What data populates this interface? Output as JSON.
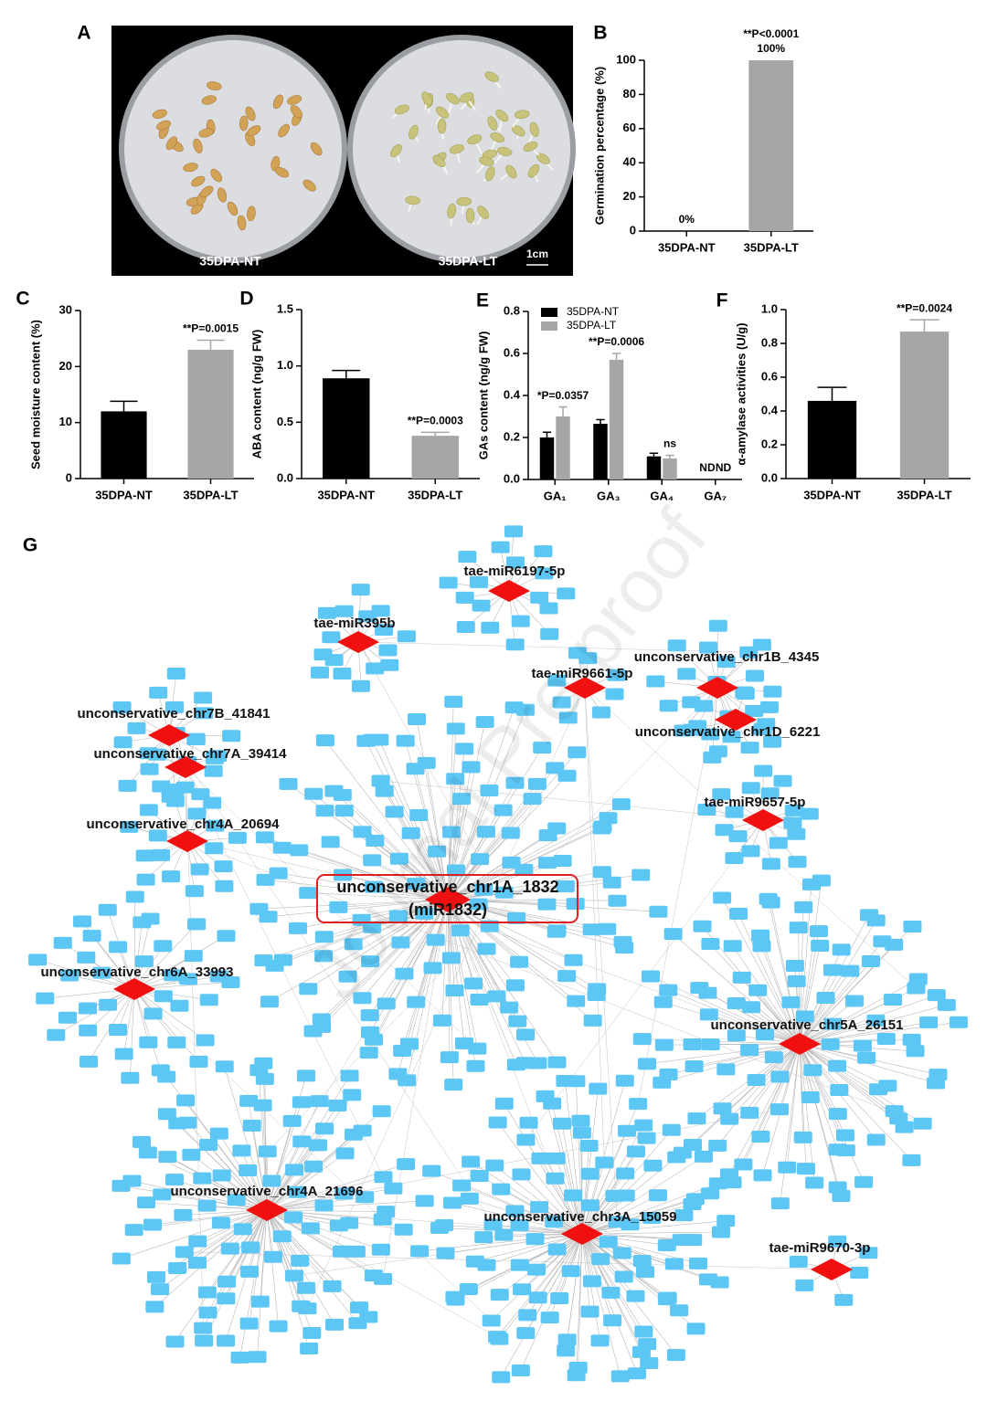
{
  "panel_labels": [
    "A",
    "B",
    "C",
    "D",
    "E",
    "F",
    "G"
  ],
  "photo": {
    "labels": [
      "35DPA-NT",
      "35DPA-LT"
    ],
    "scale_bar": "1cm"
  },
  "watermark": "Journal Pre-proof",
  "chart_data": [
    {
      "type": "bar",
      "ylabel": "Germination percentage (%)",
      "categories": [
        "35DPA-NT",
        "35DPA-LT"
      ],
      "values": [
        0,
        100
      ],
      "value_labels": [
        "0%",
        "100%"
      ],
      "colors": [
        "#000000",
        "#a6a6a8"
      ],
      "ylim": [
        0,
        100
      ],
      "yticks": [
        0,
        20,
        40,
        60,
        80,
        100
      ],
      "annotations": [
        {
          "text": "**P<0.0001",
          "category": "35DPA-LT"
        }
      ]
    },
    {
      "type": "bar",
      "ylabel": "Seed moisture content (%)",
      "categories": [
        "35DPA-NT",
        "35DPA-LT"
      ],
      "values": [
        12,
        23
      ],
      "errors": [
        1.8,
        1.7
      ],
      "colors": [
        "#000000",
        "#a6a6a8"
      ],
      "ylim": [
        0,
        30
      ],
      "yticks": [
        0,
        10,
        20,
        30
      ],
      "annotations": [
        {
          "text": "**P=0.0015",
          "category": "35DPA-LT"
        }
      ]
    },
    {
      "type": "bar",
      "ylabel": "ABA content (ng/g FW)",
      "categories": [
        "35DPA-NT",
        "35DPA-LT"
      ],
      "values": [
        0.89,
        0.38
      ],
      "errors": [
        0.07,
        0.03
      ],
      "colors": [
        "#000000",
        "#a6a6a8"
      ],
      "ylim": [
        0,
        1.5
      ],
      "yticks": [
        {
          "value": 0,
          "label": "0.0"
        },
        0.5,
        {
          "value": 1,
          "label": "1.0"
        },
        1.5
      ],
      "annotations": [
        {
          "text": "**P=0.0003",
          "category": "35DPA-LT"
        }
      ]
    },
    {
      "type": "bar",
      "ylabel": "GAs content (ng/g FW)",
      "categories": [
        "GA₁",
        "GA₃",
        "GA₄",
        "GA₇"
      ],
      "series": [
        {
          "name": "35DPA-NT",
          "color": "#000000",
          "values": [
            0.2,
            0.265,
            0.11,
            null
          ],
          "errors": [
            0.025,
            0.02,
            0.015,
            null
          ]
        },
        {
          "name": "35DPA-LT",
          "color": "#a6a6a8",
          "values": [
            0.3,
            0.57,
            0.1,
            null
          ],
          "errors": [
            0.045,
            0.03,
            0.015,
            null
          ]
        }
      ],
      "ylim": [
        0,
        0.8
      ],
      "yticks": [
        {
          "value": 0,
          "label": "0.0"
        },
        0.2,
        0.4,
        0.6,
        0.8
      ],
      "legend": "top-left",
      "annotations": [
        {
          "text": "*P=0.0357",
          "category": "GA₁",
          "series": "35DPA-LT"
        },
        {
          "text": "**P=0.0006",
          "category": "GA₃",
          "series": "35DPA-LT"
        },
        {
          "text": "ns",
          "category": "GA₄",
          "series": "35DPA-LT"
        },
        {
          "text": "ND",
          "category": "GA₇",
          "series": "35DPA-NT"
        },
        {
          "text": "ND",
          "category": "GA₇",
          "series": "35DPA-LT"
        }
      ]
    },
    {
      "type": "bar",
      "ylabel": "α-amylase activities (U/g)",
      "categories": [
        "35DPA-NT",
        "35DPA-LT"
      ],
      "values": [
        0.46,
        0.87
      ],
      "errors": [
        0.08,
        0.07
      ],
      "colors": [
        "#000000",
        "#a6a6a8"
      ],
      "ylim": [
        0,
        1
      ],
      "yticks": [
        {
          "value": 0,
          "label": "0.0"
        },
        0.2,
        0.4,
        0.6,
        0.8,
        {
          "value": 1,
          "label": "1.0"
        }
      ],
      "annotations": [
        {
          "text": "**P=0.0024",
          "category": "35DPA-LT"
        }
      ]
    }
  ],
  "network": {
    "hubs": [
      {
        "label": "tae-miR6197-5p"
      },
      {
        "label": "tae-miR395b"
      },
      {
        "label": "tae-miR9661-5p"
      },
      {
        "label": "unconservative_chr1B_4345"
      },
      {
        "label": "unconservative_chr1D_6221"
      },
      {
        "label": "unconservative_chr7B_41841"
      },
      {
        "label": "unconservative_chr7A_39414"
      },
      {
        "label": "unconservative_chr4A_20694"
      },
      {
        "label": "tae-miR9657-5p"
      },
      {
        "label": "unconservative_chr1A_1832",
        "sublabel": "(miR1832)"
      },
      {
        "label": "unconservative_chr6A_33993"
      },
      {
        "label": "unconservative_chr5A_26151"
      },
      {
        "label": "unconservative_chr4A_21696"
      },
      {
        "label": "unconservative_chr3A_15059"
      },
      {
        "label": "tae-miR9670-3p"
      }
    ]
  }
}
